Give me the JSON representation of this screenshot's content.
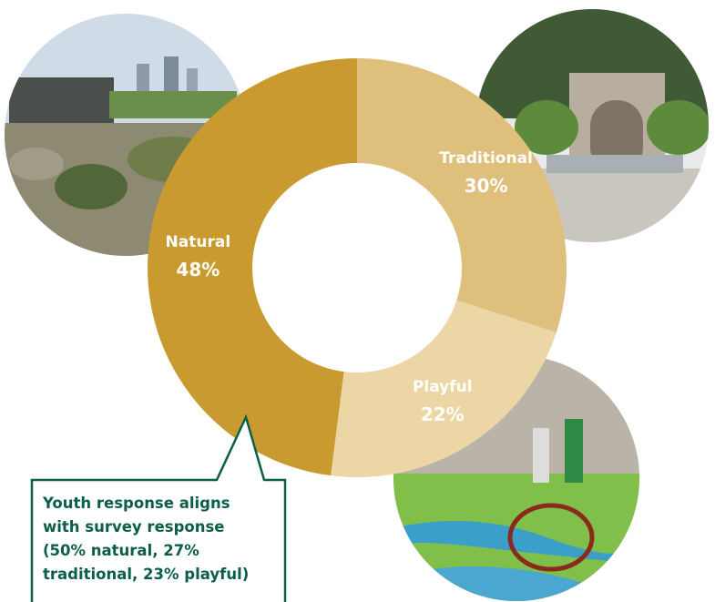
{
  "chart_data": {
    "type": "donut",
    "categories": [
      "Traditional",
      "Playful",
      "Natural"
    ],
    "values": [
      30,
      22,
      48
    ],
    "value_labels": [
      "30%",
      "22%",
      "48%"
    ],
    "colors": [
      "#dfbf7c",
      "#ecd6a6",
      "#c99a2f"
    ],
    "annotation": [
      "Youth response aligns",
      "with survey response",
      "(50% natural, 27%",
      "traditional, 23% playful)"
    ]
  }
}
